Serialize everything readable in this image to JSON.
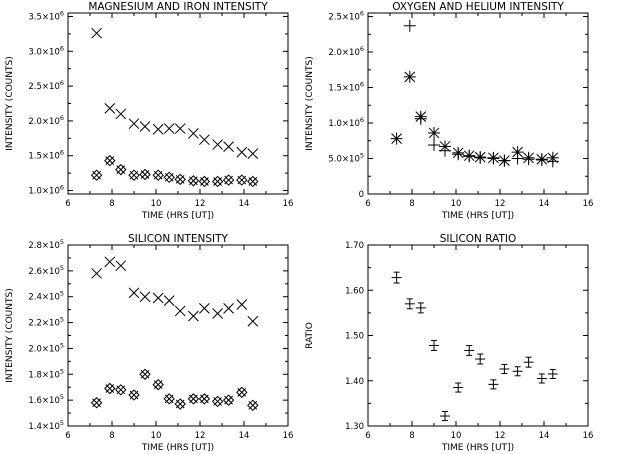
{
  "chart_data": [
    {
      "type": "scatter",
      "title": "MAGNESIUM AND IRON INTENSITY",
      "xlabel": "TIME (HRS [UT])",
      "ylabel": "INTENSITY (COUNTS)",
      "xlim": [
        6,
        16
      ],
      "ylim": [
        950000,
        3550000
      ],
      "xticks": [
        6,
        8,
        10,
        12,
        14,
        16
      ],
      "yticks": [
        {
          "value": 1000000,
          "mant": "1.0",
          "exp": "6"
        },
        {
          "value": 1500000,
          "mant": "1.5",
          "exp": "6"
        },
        {
          "value": 2000000,
          "mant": "2.0",
          "exp": "6"
        },
        {
          "value": 2500000,
          "mant": "2.5",
          "exp": "6"
        },
        {
          "value": 3000000,
          "mant": "3.0",
          "exp": "6"
        },
        {
          "value": 3500000,
          "mant": "3.5",
          "exp": "6"
        }
      ],
      "series": [
        {
          "marker": "x",
          "x": [
            7.3,
            7.9,
            8.4,
            9.0,
            9.5,
            10.1,
            10.6,
            11.1,
            11.7,
            12.2,
            12.8,
            13.3,
            13.9,
            14.4
          ],
          "y": [
            3260000,
            2180000,
            2100000,
            1960000,
            1920000,
            1880000,
            1890000,
            1890000,
            1820000,
            1730000,
            1660000,
            1630000,
            1550000,
            1530000
          ]
        },
        {
          "marker": "diamond",
          "x": [
            7.3,
            7.9,
            8.4,
            9.0,
            9.5,
            10.1,
            10.6,
            11.1,
            11.7,
            12.2,
            12.8,
            13.3,
            13.9,
            14.4
          ],
          "y": [
            1220000,
            1430000,
            1300000,
            1220000,
            1230000,
            1220000,
            1190000,
            1160000,
            1140000,
            1130000,
            1130000,
            1150000,
            1150000,
            1130000
          ]
        }
      ]
    },
    {
      "type": "scatter",
      "title": "OXYGEN AND HELIUM INTENSITY",
      "xlabel": "TIME (HRS [UT])",
      "ylabel": "INTENSITY (COUNTS)",
      "xlim": [
        6,
        16
      ],
      "ylim": [
        0,
        2550000
      ],
      "xticks": [
        6,
        8,
        10,
        12,
        14,
        16
      ],
      "yticks": [
        {
          "value": 0,
          "mant": "0",
          "exp": ""
        },
        {
          "value": 500000,
          "mant": "5.0",
          "exp": "5"
        },
        {
          "value": 1000000,
          "mant": "1.0",
          "exp": "6"
        },
        {
          "value": 1500000,
          "mant": "1.5",
          "exp": "6"
        },
        {
          "value": 2000000,
          "mant": "2.0",
          "exp": "6"
        },
        {
          "value": 2500000,
          "mant": "2.5",
          "exp": "6"
        }
      ],
      "series": [
        {
          "marker": "asterisk",
          "x": [
            7.3,
            7.9,
            8.4,
            9.0,
            9.5,
            10.1,
            10.6,
            11.1,
            11.7,
            12.2,
            12.8,
            13.3,
            13.9,
            14.4
          ],
          "y": [
            780000,
            1650000,
            1090000,
            860000,
            670000,
            580000,
            540000,
            520000,
            510000,
            470000,
            590000,
            510000,
            490000,
            510000
          ]
        },
        {
          "marker": "plus",
          "x": [
            7.9,
            8.4,
            9.0,
            9.5,
            10.1,
            10.6,
            11.1,
            11.7,
            12.2,
            12.8,
            13.3,
            13.9,
            14.4
          ],
          "y": [
            2370000,
            1060000,
            690000,
            610000,
            560000,
            530000,
            510000,
            500000,
            470000,
            500000,
            490000,
            480000,
            460000
          ]
        }
      ]
    },
    {
      "type": "scatter",
      "title": "SILICON INTENSITY",
      "xlabel": "TIME (HRS [UT])",
      "ylabel": "INTENSITY (COUNTS)",
      "xlim": [
        6,
        16
      ],
      "ylim": [
        140000,
        280000
      ],
      "xticks": [
        6,
        8,
        10,
        12,
        14,
        16
      ],
      "yticks": [
        {
          "value": 140000,
          "mant": "1.4",
          "exp": "5"
        },
        {
          "value": 160000,
          "mant": "1.6",
          "exp": "5"
        },
        {
          "value": 180000,
          "mant": "1.8",
          "exp": "5"
        },
        {
          "value": 200000,
          "mant": "2.0",
          "exp": "5"
        },
        {
          "value": 220000,
          "mant": "2.2",
          "exp": "5"
        },
        {
          "value": 240000,
          "mant": "2.4",
          "exp": "5"
        },
        {
          "value": 260000,
          "mant": "2.6",
          "exp": "5"
        },
        {
          "value": 280000,
          "mant": "2.8",
          "exp": "5"
        }
      ],
      "series": [
        {
          "marker": "x",
          "x": [
            7.3,
            7.9,
            8.4,
            9.0,
            9.5,
            10.1,
            10.6,
            11.1,
            11.7,
            12.2,
            12.8,
            13.3,
            13.9,
            14.4
          ],
          "y": [
            258000,
            267000,
            264000,
            243000,
            240000,
            239000,
            237000,
            229000,
            225000,
            231000,
            227000,
            231000,
            234000,
            221000
          ]
        },
        {
          "marker": "diamond",
          "x": [
            7.3,
            7.9,
            8.4,
            9.0,
            9.5,
            10.1,
            10.6,
            11.1,
            11.7,
            12.2,
            12.8,
            13.3,
            13.9,
            14.4
          ],
          "y": [
            158000,
            169000,
            168000,
            164000,
            180000,
            172000,
            161000,
            157000,
            161000,
            161000,
            159000,
            160000,
            166000,
            156000
          ]
        }
      ]
    },
    {
      "type": "scatter",
      "title": "SILICON RATIO",
      "xlabel": "TIME (HRS [UT])",
      "ylabel": "RATIO",
      "xlim": [
        6,
        16
      ],
      "ylim": [
        1.3,
        1.7
      ],
      "xticks": [
        6,
        8,
        10,
        12,
        14,
        16
      ],
      "yticks": [
        {
          "value": 1.3,
          "mant": "1.30",
          "exp": ""
        },
        {
          "value": 1.4,
          "mant": "1.40",
          "exp": ""
        },
        {
          "value": 1.5,
          "mant": "1.50",
          "exp": ""
        },
        {
          "value": 1.6,
          "mant": "1.60",
          "exp": ""
        },
        {
          "value": 1.7,
          "mant": "1.70",
          "exp": ""
        }
      ],
      "series": [
        {
          "marker": "errorbar",
          "x": [
            7.3,
            7.9,
            8.4,
            9.0,
            9.5,
            10.1,
            10.6,
            11.1,
            11.7,
            12.2,
            12.8,
            13.3,
            13.9,
            14.4
          ],
          "y": [
            1.628,
            1.57,
            1.561,
            1.478,
            1.322,
            1.385,
            1.467,
            1.448,
            1.392,
            1.426,
            1.421,
            1.441,
            1.405,
            1.415
          ],
          "err": [
            0.012,
            0.011,
            0.011,
            0.011,
            0.01,
            0.01,
            0.011,
            0.011,
            0.01,
            0.01,
            0.01,
            0.011,
            0.01,
            0.01
          ]
        }
      ]
    }
  ]
}
